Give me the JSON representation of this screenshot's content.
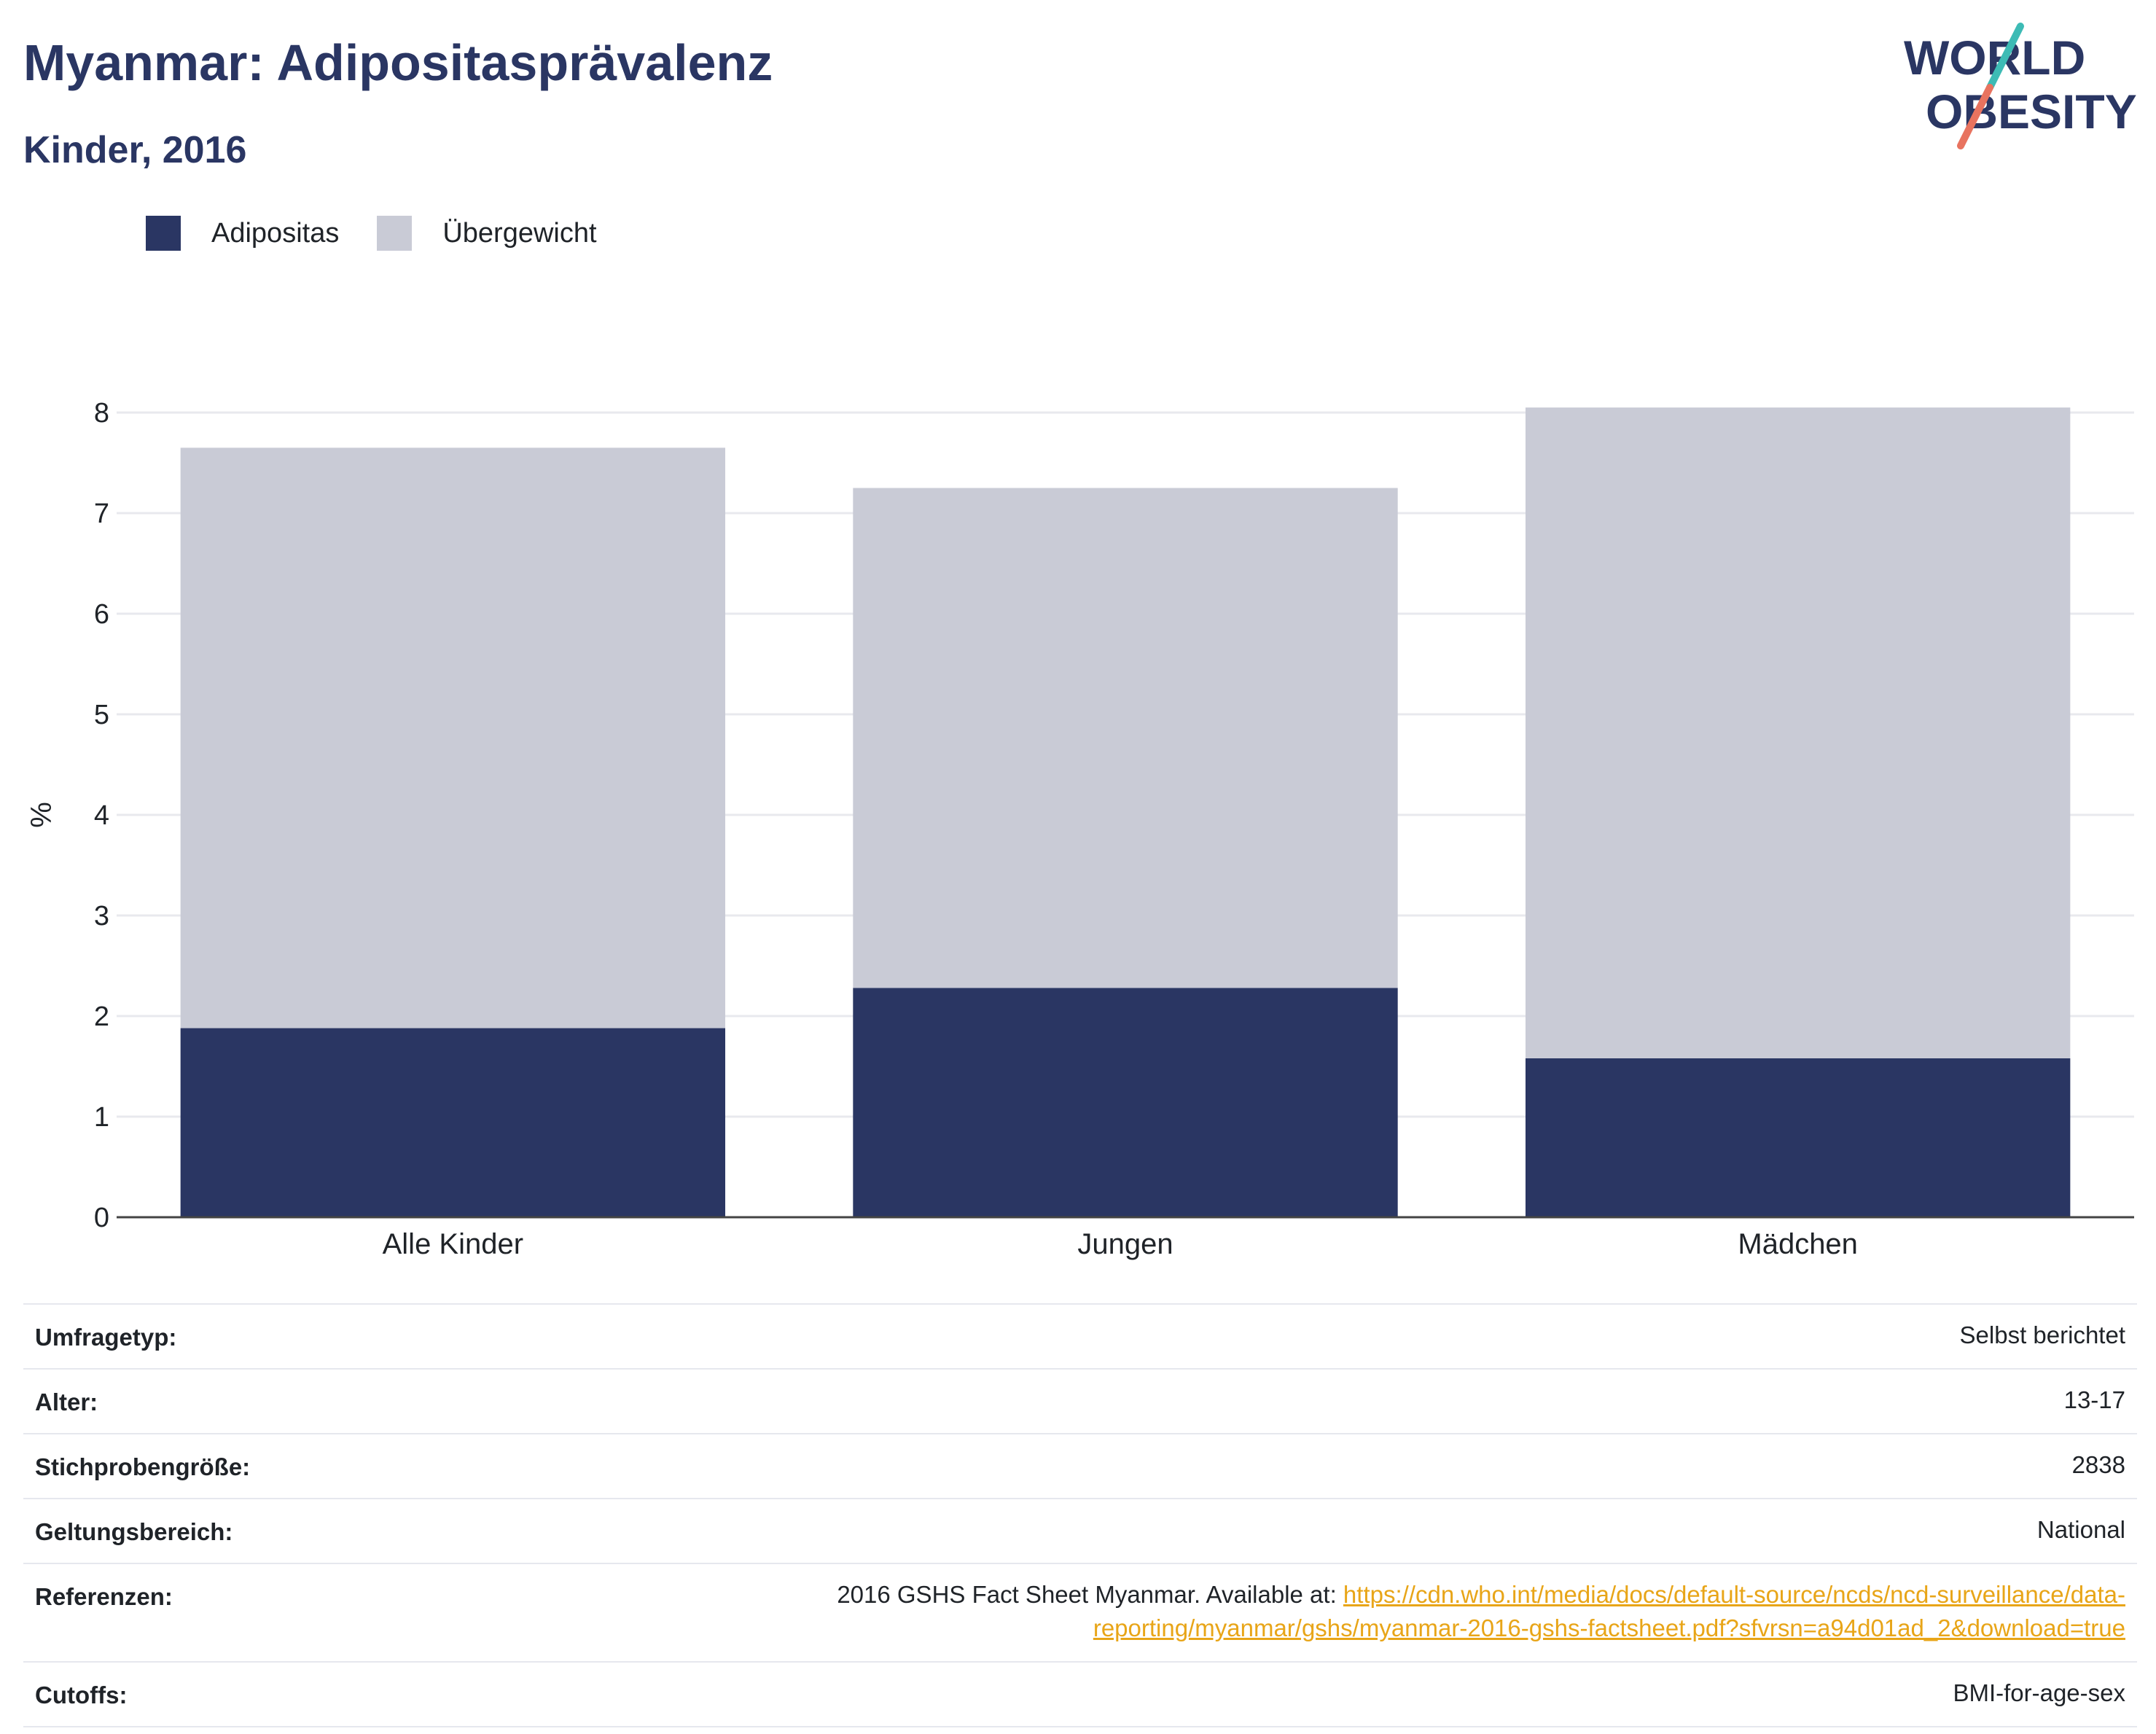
{
  "title": "Myanmar: Adipositasprävalenz",
  "subtitle": "Kinder, 2016",
  "logo": {
    "line1": "WORLD",
    "line2": "OBESITY"
  },
  "colors": {
    "adipositas": "#2a3663",
    "uebergewicht": "#c9cbd6",
    "text_dark": "#2a3663",
    "link": "#e8a518",
    "logo_teal": "#3dbbb5",
    "logo_coral": "#e8735f"
  },
  "chart_data": {
    "type": "bar",
    "stacked": true,
    "categories": [
      "Alle Kinder",
      "Jungen",
      "Mädchen"
    ],
    "series": [
      {
        "name": "Adipositas",
        "values": [
          1.88,
          2.28,
          1.58
        ]
      },
      {
        "name": "Übergewicht",
        "values": [
          5.77,
          4.97,
          6.47
        ]
      }
    ],
    "ylabel": "%",
    "ylim": [
      0,
      8
    ],
    "yticks": [
      "0",
      "1",
      "2",
      "3",
      "4",
      "5",
      "6",
      "7",
      "8"
    ],
    "grid": true,
    "legend_position": "top-left"
  },
  "meta": [
    {
      "label": "Umfragetyp:",
      "value": "Selbst berichtet"
    },
    {
      "label": "Alter:",
      "value": "13-17"
    },
    {
      "label": "Stichprobengröße:",
      "value": "2838"
    },
    {
      "label": "Geltungsbereich:",
      "value": "National"
    },
    {
      "label": "Referenzen:",
      "value": "2016 GSHS Fact Sheet Myanmar. Available at: ",
      "link_line1": "https://cdn.who.int/media/docs/default-source/ncds/ncd-surveillance/data-",
      "link_line2": "reporting/myanmar/gshs/myanmar-2016-gshs-factsheet.pdf?sfvrsn=a94d01ad_2&download=true"
    },
    {
      "label": "Cutoffs:",
      "value": "BMI-for-age-sex"
    }
  ]
}
